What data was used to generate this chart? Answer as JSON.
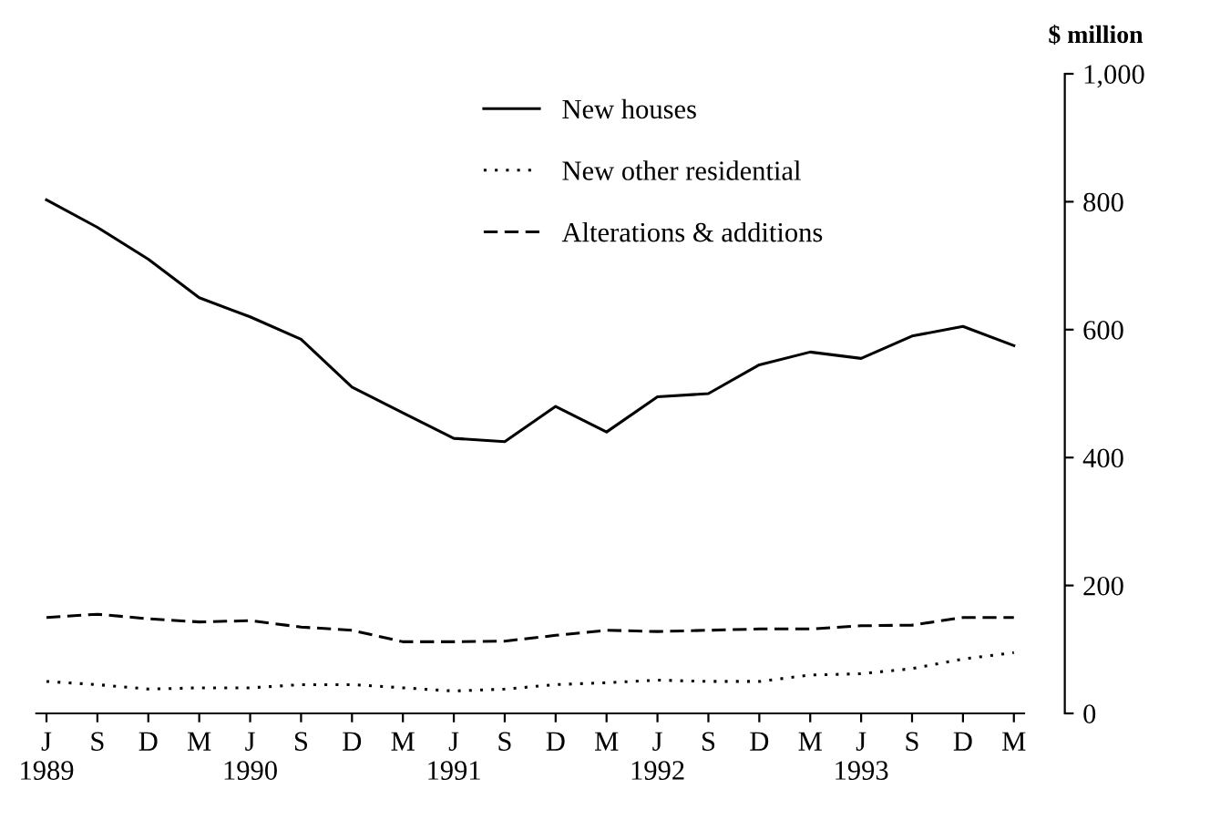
{
  "chart_data": {
    "type": "line",
    "ylabel": "$ million",
    "categories": [
      "J\n1989",
      "S",
      "D",
      "M",
      "J\n1990",
      "S",
      "D",
      "M",
      "J\n1991",
      "S",
      "D",
      "M",
      "J\n1992",
      "S",
      "D",
      "M",
      "J\n1993",
      "S",
      "D",
      "M"
    ],
    "series": [
      {
        "name": "New houses",
        "color": "#000000",
        "line_style": "solid",
        "values": [
          803,
          760,
          710,
          650,
          620,
          585,
          510,
          470,
          430,
          425,
          480,
          440,
          495,
          500,
          545,
          565,
          555,
          590,
          605,
          575
        ]
      },
      {
        "name": "New other residential",
        "color": "#000000",
        "line_style": "dotted",
        "values": [
          50,
          45,
          38,
          40,
          40,
          45,
          45,
          40,
          35,
          38,
          45,
          48,
          52,
          50,
          50,
          60,
          62,
          70,
          85,
          95
        ]
      },
      {
        "name": "Alterations & additions",
        "color": "#000000",
        "line_style": "dashed",
        "values": [
          150,
          155,
          148,
          143,
          145,
          135,
          130,
          112,
          112,
          113,
          122,
          130,
          128,
          130,
          132,
          132,
          137,
          138,
          150,
          150
        ]
      }
    ],
    "ylim": [
      0,
      1000
    ],
    "yticks": [
      0,
      200,
      400,
      600,
      800,
      {
        "value": 1000,
        "label": "1,000"
      }
    ],
    "legend": "top",
    "grid": false
  }
}
